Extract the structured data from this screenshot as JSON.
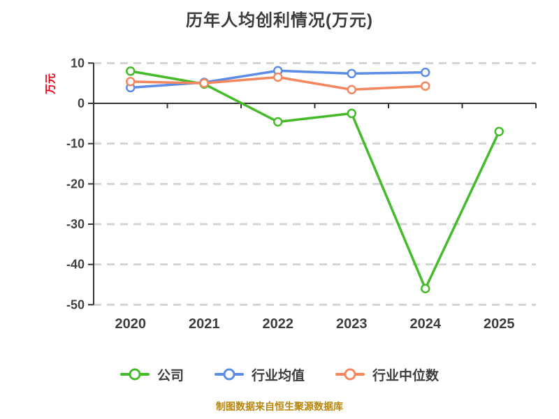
{
  "chart_data": {
    "type": "line",
    "title": "历年人均创利情况(万元)",
    "ylabel": "万元",
    "categories": [
      "2020",
      "2021",
      "2022",
      "2023",
      "2024",
      "2025"
    ],
    "series": [
      {
        "name": "公司",
        "color": "#46bb29",
        "values": [
          8.0,
          4.8,
          -4.6,
          -2.5,
          -46.0,
          -7.0
        ]
      },
      {
        "name": "行业均值",
        "color": "#5b8ce8",
        "values": [
          3.9,
          5.2,
          8.1,
          7.4,
          7.7,
          null
        ]
      },
      {
        "name": "行业中位数",
        "color": "#f5875f",
        "values": [
          5.4,
          5.0,
          6.5,
          3.4,
          4.3,
          null
        ]
      }
    ],
    "ylim": [
      -50,
      10
    ],
    "yticks": [
      10,
      0,
      -10,
      -20,
      -30,
      -40,
      -50
    ],
    "grid": "dashed horizontal gridlines",
    "x_axis_on_zero": true,
    "legend_position": "bottom",
    "marker": "circle, white fill, colored border"
  },
  "caption": {
    "text": "制图数据来自恒生聚源数据库"
  },
  "colors": {
    "background": "#ffffff",
    "title_text": "#3c3c3c",
    "axis_line": "#333333",
    "gridline": "#d4d4d4",
    "tick_label": "#424242",
    "y_unit_label": "#e60012",
    "caption_text": "#b8860b"
  }
}
